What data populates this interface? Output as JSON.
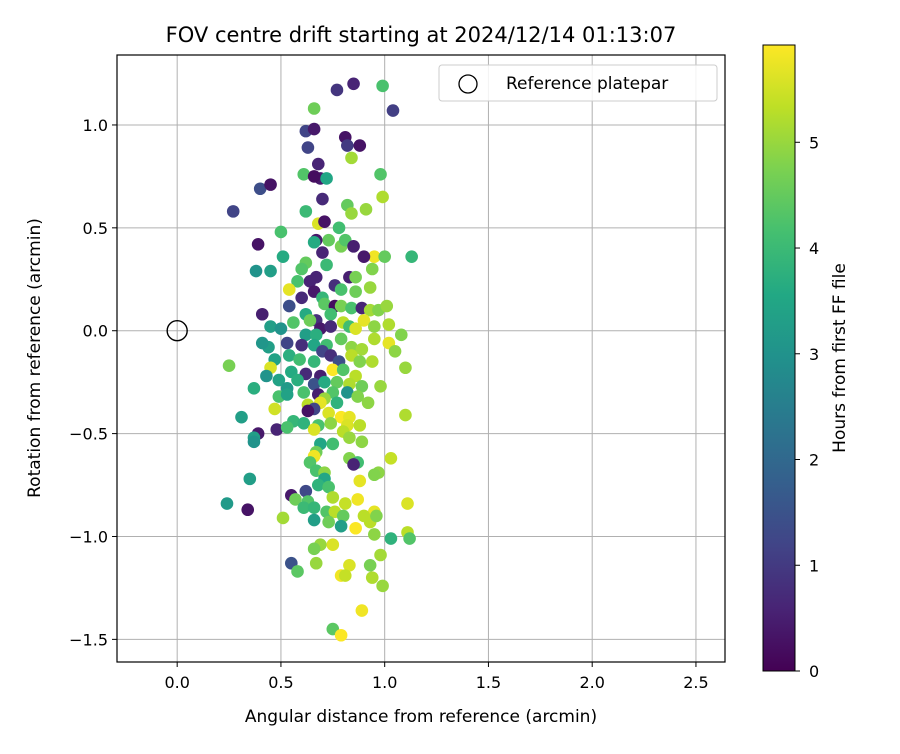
{
  "chart_data": {
    "type": "scatter",
    "title": "FOV centre drift starting at 2024/12/14 01:13:07",
    "xlabel": "Angular distance from reference (arcmin)",
    "ylabel": "Rotation from reference (arcmin)",
    "xlim": [
      -0.29,
      2.64
    ],
    "ylim": [
      -1.61,
      1.34
    ],
    "xticks": [
      {
        "value": 0.0,
        "label": "0.0"
      },
      {
        "value": 0.5,
        "label": "0.5"
      },
      {
        "value": 1.0,
        "label": "1.0"
      },
      {
        "value": 1.5,
        "label": "1.5"
      },
      {
        "value": 2.0,
        "label": "2.0"
      },
      {
        "value": 2.5,
        "label": "2.5"
      }
    ],
    "yticks": [
      {
        "value": 1.0,
        "label": "1.0"
      },
      {
        "value": 0.5,
        "label": "0.5"
      },
      {
        "value": 0.0,
        "label": "0.0"
      },
      {
        "value": -0.5,
        "label": "−0.5"
      },
      {
        "value": -1.0,
        "label": "−1.0"
      },
      {
        "value": -1.5,
        "label": "−1.5"
      }
    ],
    "grid": true,
    "legend": {
      "placement": "top-right",
      "entries": [
        {
          "label": "Reference platepar",
          "marker": "open-circle"
        }
      ]
    },
    "reference": {
      "x": 0.0,
      "y": 0.0
    },
    "colorbar": {
      "label": "Hours from first FF file",
      "colormap": "viridis",
      "range": [
        0,
        5.92
      ],
      "ticks": [
        {
          "value": 0,
          "label": "0"
        },
        {
          "value": 1,
          "label": "1"
        },
        {
          "value": 2,
          "label": "2"
        },
        {
          "value": 3,
          "label": "3"
        },
        {
          "value": 4,
          "label": "4"
        },
        {
          "value": 5,
          "label": "5"
        }
      ]
    },
    "series": [
      {
        "marker": "filled-circle",
        "note_hours_color": true,
        "points": [
          [
            0.85,
            1.2,
            0.6
          ],
          [
            0.99,
            1.19,
            4.2
          ],
          [
            0.77,
            1.17,
            0.9
          ],
          [
            1.04,
            1.07,
            1.1
          ],
          [
            0.66,
            1.08,
            4.6
          ],
          [
            0.62,
            0.97,
            1.2
          ],
          [
            0.66,
            0.98,
            0.4
          ],
          [
            0.81,
            0.94,
            0.3
          ],
          [
            0.82,
            0.9,
            1.0
          ],
          [
            0.88,
            0.9,
            0.3
          ],
          [
            0.63,
            0.89,
            1.2
          ],
          [
            0.84,
            0.84,
            5.1
          ],
          [
            0.68,
            0.81,
            0.6
          ],
          [
            0.61,
            0.76,
            4.3
          ],
          [
            0.69,
            0.74,
            0.4
          ],
          [
            0.66,
            0.75,
            0.2
          ],
          [
            0.72,
            0.74,
            3.5
          ],
          [
            0.98,
            0.76,
            4.3
          ],
          [
            0.4,
            0.69,
            1.4
          ],
          [
            0.45,
            0.71,
            0.3
          ],
          [
            0.99,
            0.65,
            5.2
          ],
          [
            0.7,
            0.64,
            0.7
          ],
          [
            0.82,
            0.61,
            4.5
          ],
          [
            0.91,
            0.59,
            5.0
          ],
          [
            0.62,
            0.58,
            4.0
          ],
          [
            0.84,
            0.57,
            5.0
          ],
          [
            0.27,
            0.58,
            1.2
          ],
          [
            0.68,
            0.52,
            5.6
          ],
          [
            0.71,
            0.53,
            0.3
          ],
          [
            0.78,
            0.5,
            4.1
          ],
          [
            0.5,
            0.48,
            4.2
          ],
          [
            0.73,
            0.44,
            4.5
          ],
          [
            0.67,
            0.44,
            0.4
          ],
          [
            0.79,
            0.41,
            4.7
          ],
          [
            0.81,
            0.44,
            4.3
          ],
          [
            0.39,
            0.42,
            0.3
          ],
          [
            0.66,
            0.43,
            3.6
          ],
          [
            0.85,
            0.41,
            0.5
          ],
          [
            0.7,
            0.38,
            0.6
          ],
          [
            0.95,
            0.36,
            5.8
          ],
          [
            1.13,
            0.36,
            3.9
          ],
          [
            1.0,
            0.36,
            4.5
          ],
          [
            0.51,
            0.36,
            3.6
          ],
          [
            0.62,
            0.33,
            4.5
          ],
          [
            0.9,
            0.36,
            0.4
          ],
          [
            0.72,
            0.32,
            4.0
          ],
          [
            0.6,
            0.3,
            4.3
          ],
          [
            0.45,
            0.29,
            3.3
          ],
          [
            0.38,
            0.29,
            3.0
          ],
          [
            0.94,
            0.3,
            4.8
          ],
          [
            0.67,
            0.26,
            0.6
          ],
          [
            0.83,
            0.26,
            0.5
          ],
          [
            0.86,
            0.26,
            4.7
          ],
          [
            0.64,
            0.24,
            0.6
          ],
          [
            0.58,
            0.24,
            4.2
          ],
          [
            0.76,
            0.22,
            0.8
          ],
          [
            0.79,
            0.2,
            4.2
          ],
          [
            0.54,
            0.2,
            5.7
          ],
          [
            0.66,
            0.19,
            0.4
          ],
          [
            0.7,
            0.16,
            3.9
          ],
          [
            0.86,
            0.19,
            4.6
          ],
          [
            0.93,
            0.21,
            5.0
          ],
          [
            0.6,
            0.16,
            0.7
          ],
          [
            0.54,
            0.12,
            1.4
          ],
          [
            0.71,
            0.13,
            4.4
          ],
          [
            0.76,
            0.12,
            0.2
          ],
          [
            0.79,
            0.12,
            4.7
          ],
          [
            0.84,
            0.11,
            4.2
          ],
          [
            0.89,
            0.11,
            0.6
          ],
          [
            0.93,
            0.1,
            5.1
          ],
          [
            0.97,
            0.1,
            4.8
          ],
          [
            1.01,
            0.12,
            5.0
          ],
          [
            0.41,
            0.08,
            0.5
          ],
          [
            0.62,
            0.08,
            3.6
          ],
          [
            0.67,
            0.05,
            0.8
          ],
          [
            0.74,
            0.08,
            4.1
          ],
          [
            0.64,
            0.05,
            4.6
          ],
          [
            0.8,
            0.04,
            5.3
          ],
          [
            0.9,
            0.05,
            5.7
          ],
          [
            0.95,
            0.02,
            4.9
          ],
          [
            0.56,
            0.04,
            4.3
          ],
          [
            0.45,
            0.02,
            3.3
          ],
          [
            0.5,
            0.01,
            3.0
          ],
          [
            0.69,
            0.01,
            0.4
          ],
          [
            0.74,
            0.02,
            0.7
          ],
          [
            0.83,
            0.02,
            4.1
          ],
          [
            1.02,
            0.03,
            5.2
          ],
          [
            1.08,
            -0.02,
            4.8
          ],
          [
            0.86,
            0.01,
            5.6
          ],
          [
            0.62,
            -0.02,
            3.3
          ],
          [
            0.67,
            -0.02,
            3.7
          ],
          [
            0.79,
            -0.04,
            4.5
          ],
          [
            0.95,
            -0.04,
            5.2
          ],
          [
            1.02,
            -0.06,
            5.7
          ],
          [
            0.53,
            -0.06,
            1.2
          ],
          [
            0.44,
            -0.08,
            3.3
          ],
          [
            0.41,
            -0.06,
            3.1
          ],
          [
            0.6,
            -0.07,
            0.8
          ],
          [
            0.66,
            -0.07,
            3.5
          ],
          [
            0.72,
            -0.07,
            4.1
          ],
          [
            0.84,
            -0.08,
            4.9
          ],
          [
            0.89,
            -0.09,
            5.1
          ],
          [
            1.05,
            -0.1,
            4.9
          ],
          [
            0.54,
            -0.12,
            3.7
          ],
          [
            0.7,
            -0.1,
            1.2
          ],
          [
            0.74,
            -0.12,
            0.8
          ],
          [
            0.84,
            -0.12,
            5.3
          ],
          [
            0.59,
            -0.14,
            4.1
          ],
          [
            0.47,
            -0.14,
            3.4
          ],
          [
            0.66,
            -0.15,
            3.9
          ],
          [
            0.78,
            -0.15,
            1.4
          ],
          [
            0.88,
            -0.15,
            4.8
          ],
          [
            0.94,
            -0.15,
            5.2
          ],
          [
            0.25,
            -0.17,
            4.7
          ],
          [
            0.45,
            -0.18,
            5.6
          ],
          [
            0.55,
            -0.2,
            3.6
          ],
          [
            0.62,
            -0.21,
            0.7
          ],
          [
            0.69,
            -0.22,
            0.5
          ],
          [
            0.75,
            -0.19,
            5.9
          ],
          [
            0.8,
            -0.19,
            4.3
          ],
          [
            0.86,
            -0.22,
            5.3
          ],
          [
            0.43,
            -0.22,
            3.0
          ],
          [
            1.1,
            -0.18,
            5.0
          ],
          [
            0.49,
            -0.24,
            3.4
          ],
          [
            0.58,
            -0.24,
            3.7
          ],
          [
            0.66,
            -0.26,
            1.5
          ],
          [
            0.71,
            -0.25,
            3.6
          ],
          [
            0.77,
            -0.25,
            4.5
          ],
          [
            0.83,
            -0.26,
            5.2
          ],
          [
            0.89,
            -0.27,
            4.6
          ],
          [
            0.98,
            -0.27,
            5.0
          ],
          [
            0.37,
            -0.28,
            3.7
          ],
          [
            0.53,
            -0.28,
            3.2
          ],
          [
            0.61,
            -0.3,
            4.2
          ],
          [
            0.68,
            -0.31,
            0.5
          ],
          [
            0.75,
            -0.3,
            4.3
          ],
          [
            0.82,
            -0.3,
            3.0
          ],
          [
            0.87,
            -0.32,
            4.8
          ],
          [
            0.49,
            -0.32,
            4.2
          ],
          [
            0.53,
            -0.31,
            3.4
          ],
          [
            0.71,
            -0.33,
            5.0
          ],
          [
            0.77,
            -0.35,
            3.8
          ],
          [
            0.63,
            -0.36,
            5.3
          ],
          [
            0.69,
            -0.35,
            5.7
          ],
          [
            0.92,
            -0.35,
            4.9
          ],
          [
            0.47,
            -0.38,
            5.5
          ],
          [
            0.66,
            -0.38,
            1.2
          ],
          [
            0.63,
            -0.39,
            0.3
          ],
          [
            0.73,
            -0.4,
            5.6
          ],
          [
            0.79,
            -0.42,
            5.9
          ],
          [
            0.83,
            -0.42,
            5.7
          ],
          [
            1.1,
            -0.41,
            5.2
          ],
          [
            0.31,
            -0.42,
            3.3
          ],
          [
            0.56,
            -0.44,
            3.9
          ],
          [
            0.61,
            -0.45,
            3.8
          ],
          [
            0.68,
            -0.46,
            4.2
          ],
          [
            0.74,
            -0.45,
            4.9
          ],
          [
            0.82,
            -0.46,
            5.6
          ],
          [
            0.88,
            -0.46,
            5.3
          ],
          [
            0.39,
            -0.5,
            0.4
          ],
          [
            0.48,
            -0.48,
            0.6
          ],
          [
            0.53,
            -0.47,
            4.2
          ],
          [
            0.66,
            -0.48,
            5.6
          ],
          [
            0.8,
            -0.49,
            5.3
          ],
          [
            0.83,
            -0.52,
            5.0
          ],
          [
            0.37,
            -0.52,
            3.3
          ],
          [
            0.37,
            -0.54,
            3.0
          ],
          [
            0.69,
            -0.55,
            3.5
          ],
          [
            0.75,
            -0.55,
            4.1
          ],
          [
            0.89,
            -0.54,
            4.9
          ],
          [
            0.67,
            -0.59,
            4.6
          ],
          [
            0.66,
            -0.61,
            5.8
          ],
          [
            0.83,
            -0.62,
            4.8
          ],
          [
            0.87,
            -0.64,
            4.1
          ],
          [
            0.85,
            -0.65,
            0.6
          ],
          [
            1.03,
            -0.62,
            5.4
          ],
          [
            0.64,
            -0.64,
            4.3
          ],
          [
            0.67,
            -0.68,
            4.2
          ],
          [
            0.71,
            -0.69,
            4.9
          ],
          [
            0.97,
            -0.69,
            4.9
          ],
          [
            0.95,
            -0.7,
            4.8
          ],
          [
            0.35,
            -0.72,
            3.3
          ],
          [
            0.71,
            -0.72,
            3.5
          ],
          [
            0.88,
            -0.73,
            5.7
          ],
          [
            0.68,
            -0.75,
            3.8
          ],
          [
            0.73,
            -0.76,
            4.2
          ],
          [
            0.62,
            -0.78,
            1.3
          ],
          [
            0.55,
            -0.8,
            0.4
          ],
          [
            0.75,
            -0.81,
            5.2
          ],
          [
            0.57,
            -0.82,
            4.6
          ],
          [
            0.63,
            -0.83,
            4.3
          ],
          [
            0.81,
            -0.84,
            5.4
          ],
          [
            0.87,
            -0.82,
            5.8
          ],
          [
            0.24,
            -0.84,
            3.2
          ],
          [
            0.61,
            -0.86,
            4.0
          ],
          [
            0.66,
            -0.86,
            3.9
          ],
          [
            0.72,
            -0.88,
            4.3
          ],
          [
            0.76,
            -0.88,
            5.3
          ],
          [
            0.95,
            -0.88,
            5.7
          ],
          [
            0.34,
            -0.87,
            0.3
          ],
          [
            0.8,
            -0.9,
            4.5
          ],
          [
            0.9,
            -0.9,
            5.3
          ],
          [
            1.11,
            -0.84,
            5.6
          ],
          [
            0.51,
            -0.91,
            5.1
          ],
          [
            0.66,
            -0.92,
            3.3
          ],
          [
            0.73,
            -0.93,
            4.6
          ],
          [
            0.79,
            -0.95,
            3.3
          ],
          [
            0.86,
            -0.96,
            5.9
          ],
          [
            0.93,
            -0.93,
            5.3
          ],
          [
            0.96,
            -0.9,
            4.8
          ],
          [
            1.11,
            -0.98,
            5.3
          ],
          [
            1.03,
            -1.01,
            3.8
          ],
          [
            1.12,
            -1.01,
            4.3
          ],
          [
            0.69,
            -1.04,
            5.0
          ],
          [
            0.66,
            -1.06,
            4.7
          ],
          [
            0.75,
            -1.04,
            5.6
          ],
          [
            0.98,
            -1.09,
            5.1
          ],
          [
            0.55,
            -1.13,
            1.5
          ],
          [
            0.67,
            -1.13,
            5.0
          ],
          [
            0.83,
            -1.14,
            5.6
          ],
          [
            0.93,
            -1.14,
            4.7
          ],
          [
            0.58,
            -1.17,
            4.4
          ],
          [
            0.79,
            -1.19,
            5.8
          ],
          [
            0.81,
            -1.19,
            5.4
          ],
          [
            0.94,
            -1.2,
            5.2
          ],
          [
            0.99,
            -1.24,
            5.0
          ],
          [
            0.89,
            -1.36,
            5.8
          ],
          [
            0.75,
            -1.45,
            4.4
          ],
          [
            0.79,
            -1.48,
            5.9
          ],
          [
            0.95,
            -0.99,
            4.9
          ]
        ]
      }
    ]
  }
}
